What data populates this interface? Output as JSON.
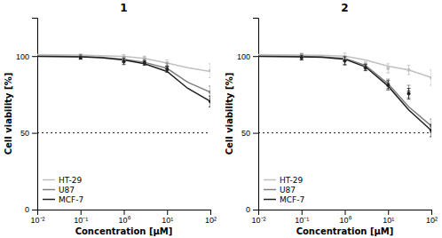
{
  "chart_data": [
    {
      "type": "line",
      "title": "1",
      "x_label": "Concentration [μM]",
      "y_label": "Cell viability [%]",
      "log": "x",
      "xlim": [
        0.01,
        100
      ],
      "ylim": [
        0,
        125
      ],
      "xticks": [
        {
          "value": 0.01,
          "label": "10⁻²"
        },
        {
          "value": 0.1,
          "label": "10⁻¹"
        },
        {
          "value": 1,
          "label": "10⁰"
        },
        {
          "value": 10,
          "label": "10¹"
        },
        {
          "value": 100,
          "label": "10²"
        }
      ],
      "yticks": [
        0,
        50,
        100
      ],
      "grid": false,
      "legend": "lower left",
      "hline": 50,
      "series": [
        {
          "type": "line",
          "name": "HT-29",
          "color": "#c0c0c0",
          "line_style": "solid",
          "x": [
            0.01,
            0.03,
            0.1,
            0.3,
            1.0,
            3.0,
            10.0,
            30.0,
            100.0
          ],
          "values": [
            101.0,
            100.9,
            100.7,
            100.3,
            99.8,
            98.5,
            95.5,
            92.5,
            90.0
          ]
        },
        {
          "type": "line",
          "name": "U87",
          "color": "#808080",
          "line_style": "solid",
          "x": [
            0.01,
            0.03,
            0.1,
            0.3,
            1.0,
            3.0,
            10.0,
            30.0,
            100.0
          ],
          "values": [
            100.0,
            99.9,
            99.7,
            99.3,
            98.0,
            96.0,
            92.0,
            83.0,
            76.5
          ]
        },
        {
          "type": "line",
          "name": "MCF-7",
          "color": "#202020",
          "line_style": "solid",
          "x": [
            0.01,
            0.03,
            0.1,
            0.3,
            1.0,
            3.0,
            10.0,
            30.0,
            100.0
          ],
          "values": [
            99.8,
            99.7,
            99.5,
            99.0,
            97.5,
            95.0,
            90.0,
            79.0,
            70.5
          ]
        },
        {
          "type": "scatter",
          "color": "#c0c0c0",
          "marker": "circle",
          "x": [
            0.1,
            1.0,
            3.0,
            10.0,
            100.0
          ],
          "values": [
            100.5,
            99.5,
            99.0,
            95.5,
            90.5
          ],
          "errors": [
            1.0,
            1.5,
            1.0,
            2.0,
            4.5
          ]
        },
        {
          "type": "scatter",
          "color": "#808080",
          "marker": "circle",
          "x": [
            0.1,
            1.0,
            3.0,
            10.0,
            100.0
          ],
          "values": [
            99.5,
            97.5,
            96.5,
            93.0,
            76.5
          ],
          "errors": [
            1.5,
            2.0,
            1.5,
            2.5,
            4.0
          ]
        },
        {
          "type": "scatter",
          "color": "#202020",
          "marker": "circle",
          "x": [
            0.1,
            1.0,
            3.0,
            10.0,
            100.0
          ],
          "values": [
            99.0,
            96.5,
            95.5,
            91.5,
            70.5
          ],
          "errors": [
            1.0,
            2.0,
            1.5,
            2.0,
            3.5
          ]
        }
      ]
    },
    {
      "type": "line",
      "title": "2",
      "x_label": "Concentration [μM]",
      "y_label": "Cell viability [%]",
      "log": "x",
      "xlim": [
        0.01,
        100
      ],
      "ylim": [
        0,
        125
      ],
      "xticks": [
        {
          "value": 0.01,
          "label": "10⁻²"
        },
        {
          "value": 0.1,
          "label": "10⁻¹"
        },
        {
          "value": 1,
          "label": "10⁰"
        },
        {
          "value": 10,
          "label": "10¹"
        },
        {
          "value": 100,
          "label": "10²"
        }
      ],
      "yticks": [
        0,
        50,
        100
      ],
      "grid": false,
      "legend": "lower left",
      "hline": 50,
      "series": [
        {
          "type": "line",
          "name": "HT-29",
          "color": "#c0c0c0",
          "line_style": "solid",
          "x": [
            0.01,
            0.03,
            0.1,
            0.3,
            1.0,
            3.0,
            10.0,
            30.0,
            100.0
          ],
          "values": [
            101.0,
            100.9,
            100.7,
            100.5,
            100.0,
            97.5,
            93.5,
            91.0,
            86.0
          ]
        },
        {
          "type": "line",
          "name": "U87",
          "color": "#808080",
          "line_style": "solid",
          "x": [
            0.01,
            0.03,
            0.1,
            0.3,
            1.0,
            3.0,
            10.0,
            30.0,
            100.0
          ],
          "values": [
            100.0,
            99.9,
            99.8,
            99.5,
            98.5,
            94.0,
            82.0,
            67.0,
            54.5
          ]
        },
        {
          "type": "line",
          "name": "MCF-7",
          "color": "#202020",
          "line_style": "solid",
          "x": [
            0.01,
            0.03,
            0.1,
            0.3,
            1.0,
            3.0,
            10.0,
            30.0,
            100.0
          ],
          "values": [
            99.8,
            99.7,
            99.6,
            99.3,
            98.0,
            93.0,
            80.5,
            65.0,
            51.5
          ]
        },
        {
          "type": "scatter",
          "color": "#c0c0c0",
          "marker": "circle",
          "x": [
            0.1,
            1.0,
            3.0,
            10.0,
            30.0,
            100.0
          ],
          "values": [
            100.5,
            98.5,
            95.0,
            92.0,
            91.0,
            86.0
          ],
          "errors": [
            1.5,
            3.5,
            1.5,
            3.0,
            3.0,
            5.0
          ]
        },
        {
          "type": "scatter",
          "color": "#808080",
          "marker": "circle",
          "x": [
            0.1,
            1.0,
            3.0,
            10.0,
            30.0,
            100.0
          ],
          "values": [
            99.5,
            97.0,
            93.0,
            82.0,
            77.0,
            54.5
          ],
          "errors": [
            2.0,
            3.0,
            2.0,
            3.0,
            4.0,
            4.5
          ]
        },
        {
          "type": "scatter",
          "color": "#202020",
          "marker": "circle",
          "x": [
            0.1,
            1.0,
            3.0,
            10.0,
            30.0,
            100.0
          ],
          "values": [
            99.0,
            97.0,
            92.5,
            81.0,
            75.5,
            51.5
          ],
          "errors": [
            1.5,
            2.5,
            2.0,
            3.0,
            3.5,
            4.0
          ]
        }
      ]
    }
  ]
}
